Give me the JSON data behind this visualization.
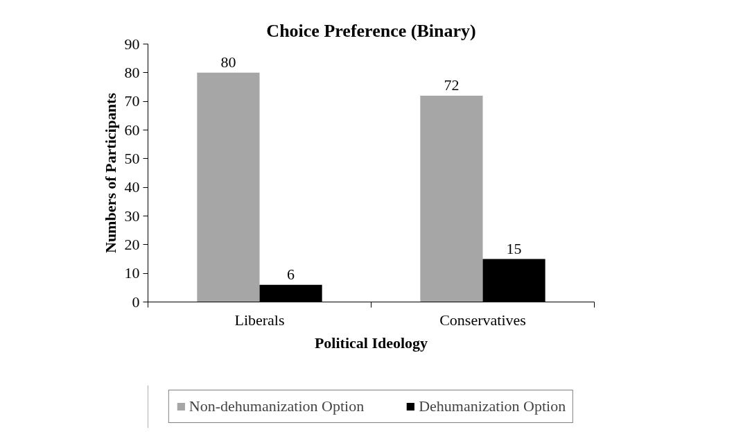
{
  "chart_data": {
    "type": "bar",
    "title": "Choice Preference (Binary)",
    "xlabel": "Political Ideology",
    "ylabel": "Numbers of Participants",
    "categories": [
      "Liberals",
      "Conservatives"
    ],
    "series": [
      {
        "name": "Non-dehumanization Option",
        "color": "#a6a6a6",
        "values": [
          80,
          72
        ]
      },
      {
        "name": "Dehumanization Option",
        "color": "#000000",
        "values": [
          6,
          15
        ]
      }
    ],
    "ylim": [
      0,
      90
    ],
    "yticks": [
      0,
      10,
      20,
      30,
      40,
      50,
      60,
      70,
      80,
      90
    ],
    "grid": false,
    "data_labels": true,
    "legend": "bottom"
  }
}
